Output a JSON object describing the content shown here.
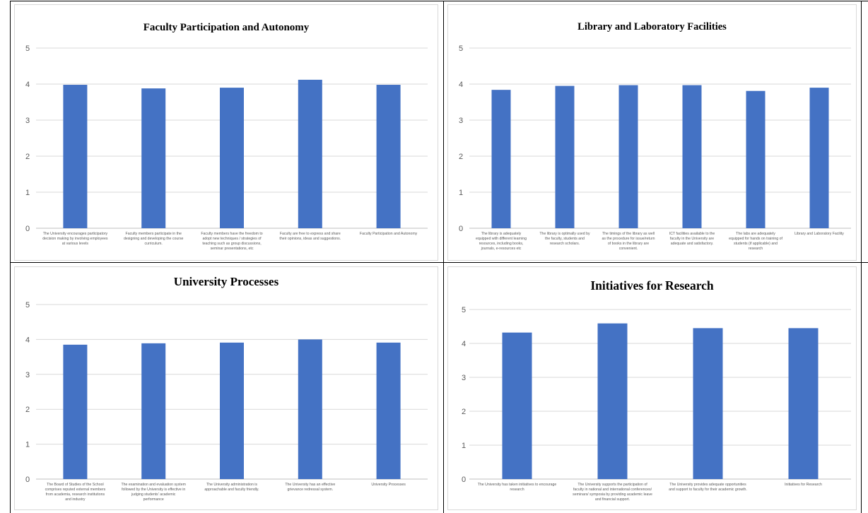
{
  "chart_data": [
    {
      "type": "bar",
      "title": "Faculty Participation and Autonomy",
      "ylim": [
        0,
        5
      ],
      "yticks": [
        "0",
        "1",
        "2",
        "3",
        "4",
        "5"
      ],
      "grid": true,
      "bar_color": "#4472C4",
      "categories": [
        [
          "The University encourages participatory",
          "decision making by involving employees",
          "at various levels"
        ],
        [
          "Faculty members participate in the",
          "designing and developing the course",
          "curriculum."
        ],
        [
          "Faculty members have the freedom to",
          "adopt new techniques / strategies of",
          "teaching such as group discussions,",
          "seminar presentations, etc"
        ],
        [
          "Faculty are free to express and share",
          "their opinions, ideas and suggestions."
        ],
        [
          "Faculty Participation and Autonomy"
        ]
      ],
      "values": [
        3.98,
        3.88,
        3.9,
        4.12,
        3.98
      ]
    },
    {
      "type": "bar",
      "title": "Library and Laboratory Facilities",
      "ylim": [
        0,
        5
      ],
      "yticks": [
        "0",
        "1",
        "2",
        "3",
        "4",
        "5"
      ],
      "grid": true,
      "bar_color": "#4472C4",
      "categories": [
        [
          "The library is adequately",
          "equipped with different learning",
          "resources, including books,",
          "journals, e-resources etc"
        ],
        [
          "The library is optimally used by",
          "the faculty, students and",
          "research scholars."
        ],
        [
          "The timings of the library as well",
          "as the procedure for issue/return",
          "of books in the library are",
          "convenient."
        ],
        [
          "ICT facilities available to the",
          "faculty in the University are",
          "adequate and satisfactory."
        ],
        [
          "The labs are adequately",
          "equipped for hands on training of",
          "students (if applicable) and",
          "research"
        ],
        [
          "Library and Laboratory Facility"
        ]
      ],
      "values": [
        3.84,
        3.95,
        3.97,
        3.97,
        3.81,
        3.9
      ]
    },
    {
      "type": "bar",
      "title": "University Processes",
      "ylim": [
        0,
        5
      ],
      "yticks": [
        "0",
        "1",
        "2",
        "3",
        "4",
        "5"
      ],
      "grid": true,
      "bar_color": "#4472C4",
      "categories": [
        [
          "The Board of Studies of the School",
          "comprises reputed external members",
          "from academia, research institutions",
          "and industry"
        ],
        [
          "The examination and evaluation system",
          "followed by the University is effective in",
          "judging students' academic",
          "performance"
        ],
        [
          "The University administration is",
          "approachable and faculty friendly."
        ],
        [
          "The University has an effective",
          "grievance redressal system."
        ],
        [
          "University Processes"
        ]
      ],
      "values": [
        3.85,
        3.89,
        3.91,
        4.0,
        3.91
      ]
    },
    {
      "type": "bar",
      "title": "Initiatives for Research",
      "ylim": [
        0,
        5
      ],
      "yticks": [
        "0",
        "1",
        "2",
        "3",
        "4",
        "5"
      ],
      "grid": true,
      "bar_color": "#4472C4",
      "categories": [
        [
          "The University has taken initiatives to encourage",
          "research"
        ],
        [
          "The University supports the participation of",
          "faculty in national and international conferences/",
          "seminars/ symposia by providing academic leave",
          "and financial support."
        ],
        [
          "The University provides adequate opportunities",
          "and support to faculty for their academic growth."
        ],
        [
          "Initiatives for Research"
        ]
      ],
      "values": [
        4.32,
        4.59,
        4.45,
        4.45
      ]
    }
  ]
}
